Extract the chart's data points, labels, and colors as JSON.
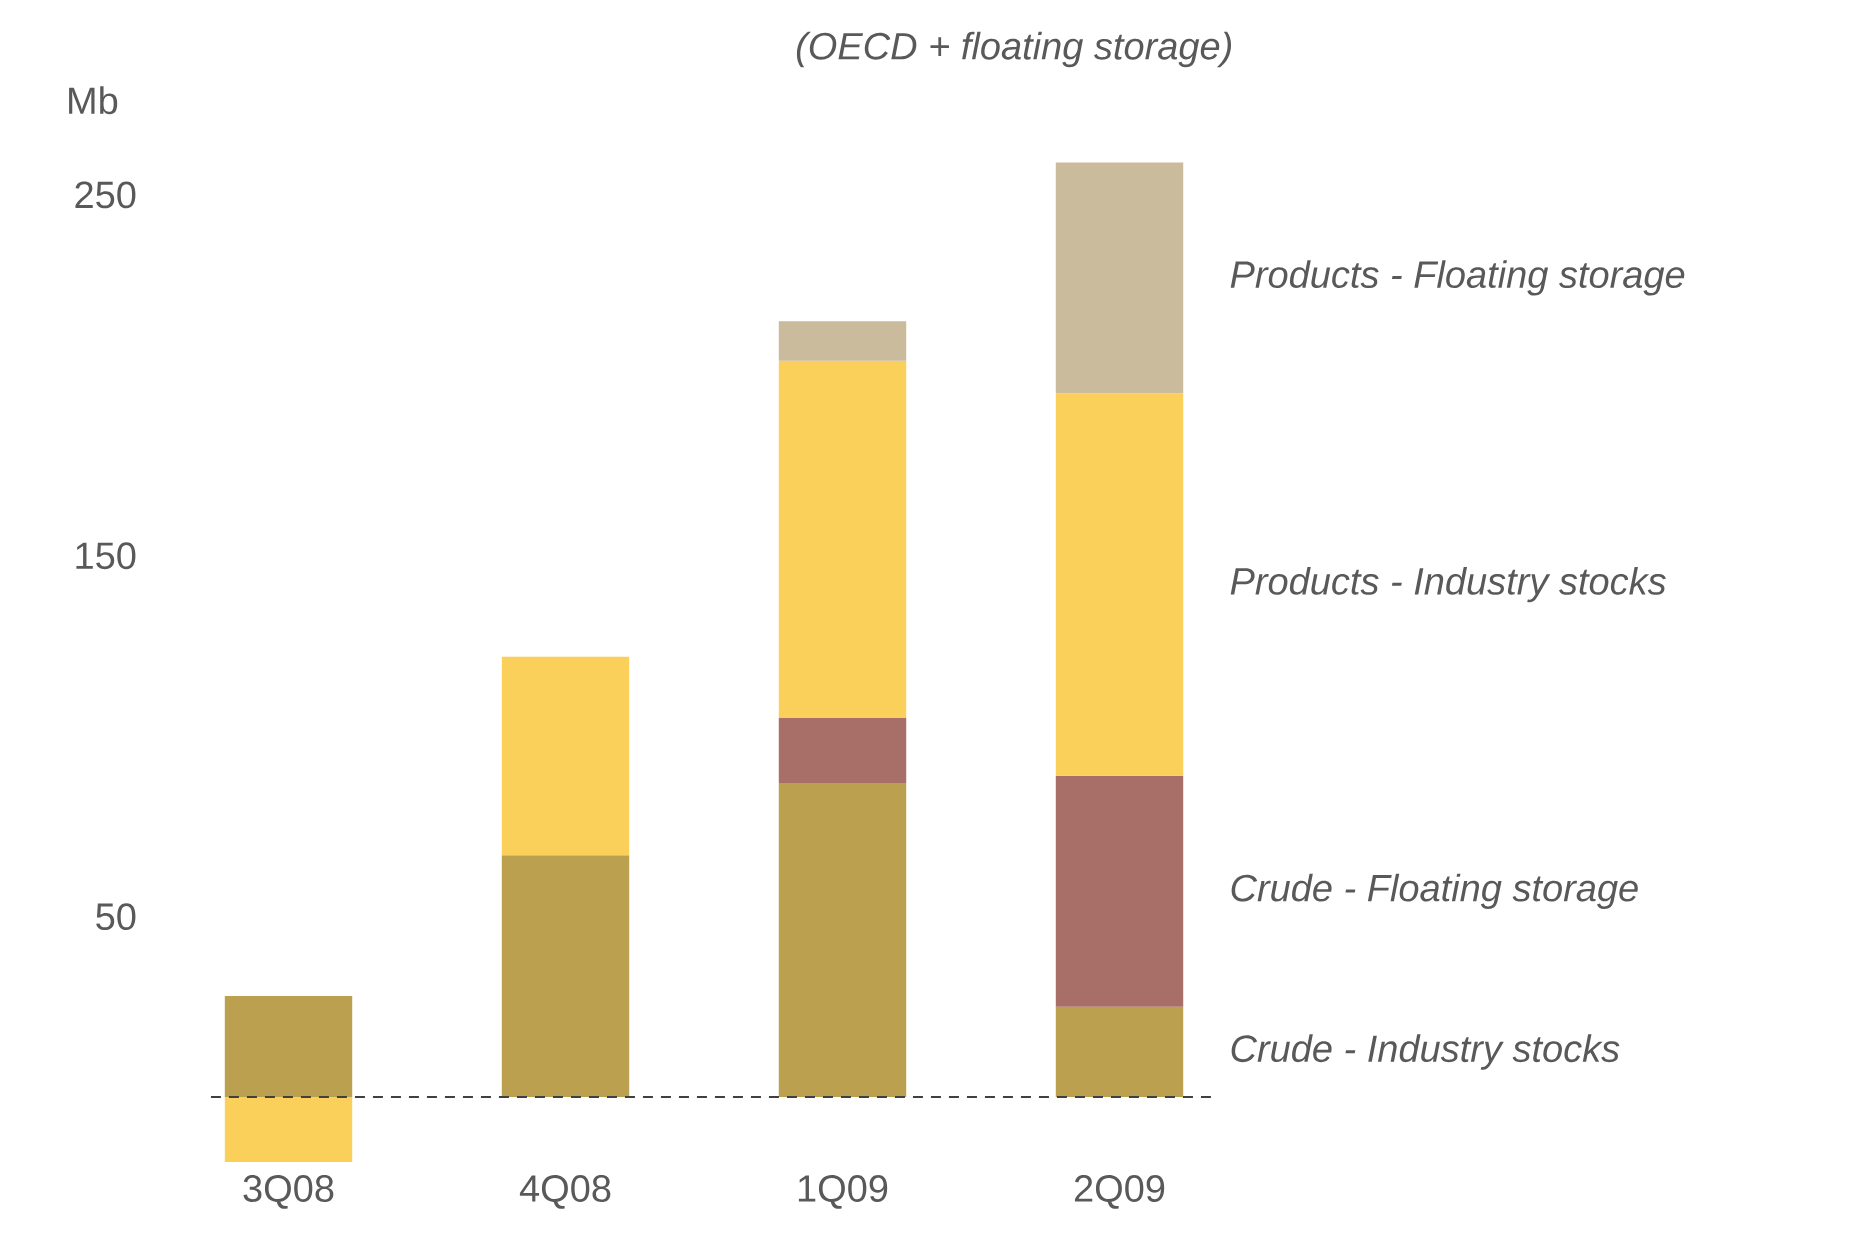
{
  "chart_data": {
    "type": "bar",
    "stacked": true,
    "title": "(OECD + floating storage)",
    "ylabel": "Mb",
    "categories": [
      "3Q08",
      "4Q08",
      "1Q09",
      "2Q09"
    ],
    "series": [
      {
        "name": "Crude - Industry stocks",
        "color": "#bba14f",
        "values": [
          28,
          67,
          87,
          25
        ]
      },
      {
        "name": "Crude - Floating storage",
        "color": "#a86f68",
        "values": [
          0,
          0,
          18,
          64
        ]
      },
      {
        "name": "Products - Industry stocks",
        "color": "#fad05a",
        "values": [
          -18,
          55,
          99,
          106
        ]
      },
      {
        "name": "Products - Floating storage",
        "color": "#c9bb9b",
        "values": [
          0,
          0,
          11,
          64
        ]
      }
    ],
    "ylim": [
      -18,
      258
    ],
    "yticks": [
      50,
      150,
      250
    ],
    "grid": false,
    "legend": false,
    "ref_lines": [
      {
        "axis": "y",
        "value": 0,
        "line_style": "dashed",
        "color": "#404040"
      }
    ]
  }
}
